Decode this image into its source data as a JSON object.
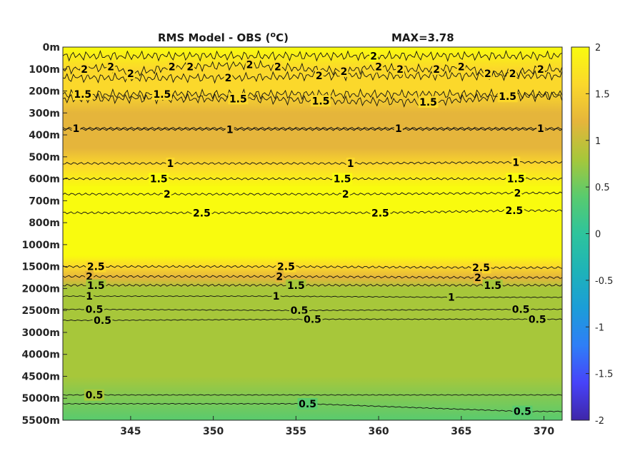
{
  "chart_data": {
    "type": "heatmap",
    "title": "RMS Model - OBS (",
    "title_unit_super": "o",
    "title_unit_tail": "C)",
    "max_label": "MAX=3.78",
    "x_ticks": [
      345,
      350,
      355,
      360,
      365,
      370
    ],
    "x_range": [
      340.9,
      371.1
    ],
    "depth_labels": [
      "0m",
      "100m",
      "200m",
      "300m",
      "400m",
      "500m",
      "600m",
      "700m",
      "800m",
      "1000m",
      "1500m",
      "2000m",
      "2500m",
      "3000m",
      "4000m",
      "4500m",
      "5000m",
      "5500m"
    ],
    "colorbar": {
      "min": -2,
      "max": 2,
      "ticks": [
        "2",
        "1.5",
        "1",
        "0.5",
        "0",
        "-0.5",
        "-1",
        "-1.5",
        "-2"
      ]
    },
    "colormap": [
      "#3e26a8",
      "#4743f9",
      "#2f7ef7",
      "#1b9dd8",
      "#1eb3b8",
      "#2ec49c",
      "#59cb6e",
      "#a7c73a",
      "#e5b53b",
      "#fbd82b",
      "#f9fb0e"
    ],
    "profile": [
      {
        "level": 0.0,
        "value": 1.95
      },
      {
        "level": 1.0,
        "value": 1.75
      },
      {
        "level": 2.0,
        "value": 1.45
      },
      {
        "level": 3.0,
        "value": 1.18
      },
      {
        "level": 3.6,
        "value": 1.0
      },
      {
        "level": 4.6,
        "value": 1.0
      },
      {
        "level": 5.4,
        "value": 1.5
      },
      {
        "level": 6.4,
        "value": 2.15
      },
      {
        "level": 7.5,
        "value": 2.6
      },
      {
        "level": 8.8,
        "value": 2.6
      },
      {
        "level": 9.5,
        "value": 2.2
      },
      {
        "level": 10.0,
        "value": 1.5
      },
      {
        "level": 10.5,
        "value": 1.0
      },
      {
        "level": 11.0,
        "value": 0.62
      },
      {
        "level": 12.0,
        "value": 0.7
      },
      {
        "level": 13.0,
        "value": 0.74
      },
      {
        "level": 14.0,
        "value": 0.7
      },
      {
        "level": 15.0,
        "value": 0.6
      },
      {
        "level": 17.0,
        "value": 0.52
      }
    ],
    "contour_labels": [
      {
        "text": "2",
        "x": 342.2,
        "level": 1.0
      },
      {
        "text": "2",
        "x": 343.8,
        "level": 0.9
      },
      {
        "text": "2",
        "x": 345.0,
        "level": 1.2
      },
      {
        "text": "2",
        "x": 347.5,
        "level": 0.9
      },
      {
        "text": "2",
        "x": 348.6,
        "level": 0.9
      },
      {
        "text": "2",
        "x": 350.9,
        "level": 1.4
      },
      {
        "text": "2",
        "x": 352.2,
        "level": 0.8
      },
      {
        "text": "2",
        "x": 353.9,
        "level": 0.9
      },
      {
        "text": "2",
        "x": 356.4,
        "level": 1.3
      },
      {
        "text": "2",
        "x": 357.9,
        "level": 1.1
      },
      {
        "text": "2",
        "x": 359.7,
        "level": 0.4
      },
      {
        "text": "2",
        "x": 360.0,
        "level": 0.9
      },
      {
        "text": "2",
        "x": 361.3,
        "level": 1.0
      },
      {
        "text": "2",
        "x": 363.5,
        "level": 1.0
      },
      {
        "text": "2",
        "x": 365.0,
        "level": 0.9
      },
      {
        "text": "2",
        "x": 366.6,
        "level": 1.2
      },
      {
        "text": "2",
        "x": 368.1,
        "level": 1.2
      },
      {
        "text": "2",
        "x": 369.8,
        "level": 1.0
      },
      {
        "text": "1.5",
        "x": 342.1,
        "level": 2.15
      },
      {
        "text": "1.5",
        "x": 346.9,
        "level": 2.15
      },
      {
        "text": "1.5",
        "x": 351.5,
        "level": 2.35
      },
      {
        "text": "1.5",
        "x": 356.5,
        "level": 2.45
      },
      {
        "text": "1.5",
        "x": 363.0,
        "level": 2.5
      },
      {
        "text": "1.5",
        "x": 367.8,
        "level": 2.25
      },
      {
        "text": "1",
        "x": 341.7,
        "level": 3.7
      },
      {
        "text": "1",
        "x": 351.0,
        "level": 3.75
      },
      {
        "text": "1",
        "x": 361.2,
        "level": 3.7
      },
      {
        "text": "1",
        "x": 369.8,
        "level": 3.7
      },
      {
        "text": "1",
        "x": 347.4,
        "level": 5.3
      },
      {
        "text": "1",
        "x": 358.3,
        "level": 5.3
      },
      {
        "text": "1",
        "x": 368.3,
        "level": 5.25
      },
      {
        "text": "1.5",
        "x": 346.7,
        "level": 6.0
      },
      {
        "text": "1.5",
        "x": 357.8,
        "level": 6.0
      },
      {
        "text": "1.5",
        "x": 368.3,
        "level": 6.0
      },
      {
        "text": "2",
        "x": 347.2,
        "level": 6.7
      },
      {
        "text": "2",
        "x": 358.0,
        "level": 6.7
      },
      {
        "text": "2",
        "x": 368.4,
        "level": 6.65
      },
      {
        "text": "2.5",
        "x": 349.3,
        "level": 7.55
      },
      {
        "text": "2.5",
        "x": 360.1,
        "level": 7.55
      },
      {
        "text": "2.5",
        "x": 368.2,
        "level": 7.45
      },
      {
        "text": "2.5",
        "x": 342.9,
        "level": 10.0
      },
      {
        "text": "2.5",
        "x": 354.4,
        "level": 10.0
      },
      {
        "text": "2.5",
        "x": 366.2,
        "level": 10.05
      },
      {
        "text": "2",
        "x": 342.5,
        "level": 10.45
      },
      {
        "text": "2",
        "x": 354.0,
        "level": 10.45
      },
      {
        "text": "2",
        "x": 366.0,
        "level": 10.5
      },
      {
        "text": "1.5",
        "x": 342.9,
        "level": 10.85
      },
      {
        "text": "1.5",
        "x": 355.0,
        "level": 10.85
      },
      {
        "text": "1.5",
        "x": 366.9,
        "level": 10.85
      },
      {
        "text": "1",
        "x": 342.5,
        "level": 11.35
      },
      {
        "text": "1",
        "x": 353.8,
        "level": 11.35
      },
      {
        "text": "1",
        "x": 364.4,
        "level": 11.4
      },
      {
        "text": "0.5",
        "x": 342.8,
        "level": 11.95
      },
      {
        "text": "0.5",
        "x": 355.2,
        "level": 12.0
      },
      {
        "text": "0.5",
        "x": 368.6,
        "level": 11.95
      },
      {
        "text": "0.5",
        "x": 343.3,
        "level": 12.45
      },
      {
        "text": "0.5",
        "x": 356.0,
        "level": 12.4
      },
      {
        "text": "0.5",
        "x": 369.6,
        "level": 12.4
      },
      {
        "text": "0.5",
        "x": 342.8,
        "level": 15.85
      },
      {
        "text": "0.5",
        "x": 355.7,
        "level": 16.25
      },
      {
        "text": "0.5",
        "x": 368.7,
        "level": 16.6
      }
    ]
  }
}
